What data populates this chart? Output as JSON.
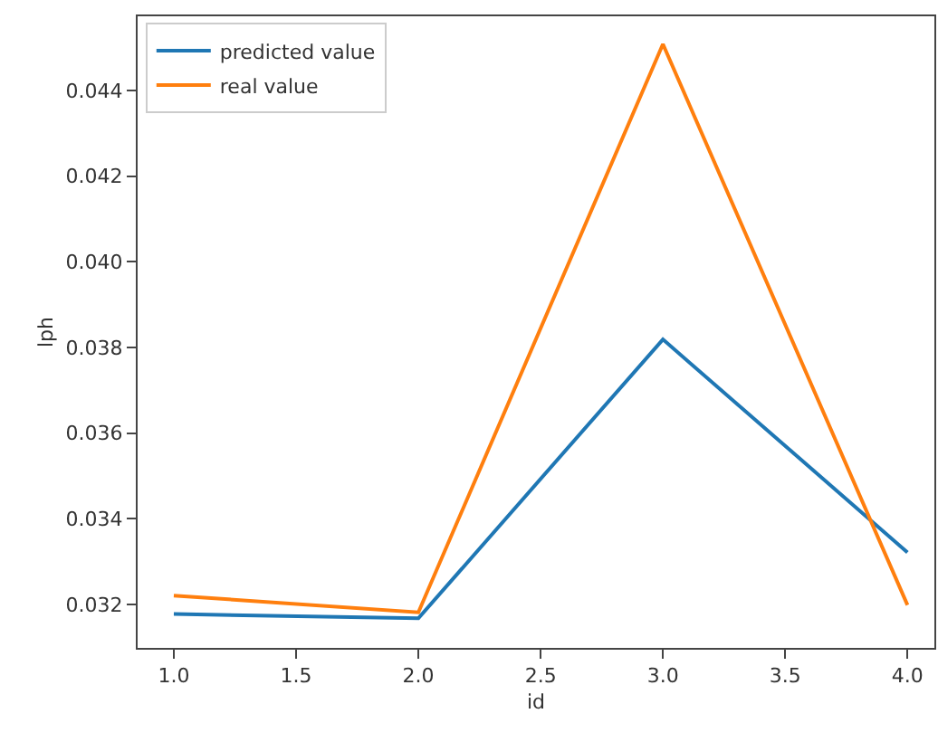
{
  "chart_data": {
    "type": "line",
    "xlabel": "id",
    "ylabel": "lph",
    "x": [
      1.0,
      2.0,
      3.0,
      4.0
    ],
    "series": [
      {
        "name": "predicted value",
        "color": "#1f77b4",
        "values": [
          0.03178,
          0.03168,
          0.03819,
          0.03322
        ]
      },
      {
        "name": "real value",
        "color": "#ff7f0e",
        "values": [
          0.03221,
          0.03182,
          0.04508,
          0.03199
        ]
      }
    ],
    "xlim": [
      0.852,
      4.11
    ],
    "xticks": [
      {
        "value": 1.0,
        "label": "1.0"
      },
      {
        "value": 1.5,
        "label": "1.5"
      },
      {
        "value": 2.0,
        "label": "2.0"
      },
      {
        "value": 2.5,
        "label": "2.5"
      },
      {
        "value": 3.0,
        "label": "3.0"
      },
      {
        "value": 3.5,
        "label": "3.5"
      },
      {
        "value": 4.0,
        "label": "4.0"
      }
    ],
    "ylim": [
      0.03099,
      0.04573
    ],
    "yticks": [
      {
        "value": 0.032,
        "label": "0.032"
      },
      {
        "value": 0.034,
        "label": "0.034"
      },
      {
        "value": 0.036,
        "label": "0.036"
      },
      {
        "value": 0.038,
        "label": "0.038"
      },
      {
        "value": 0.04,
        "label": "0.040"
      },
      {
        "value": 0.042,
        "label": "0.042"
      },
      {
        "value": 0.044,
        "label": "0.044"
      }
    ],
    "legend": "top left"
  }
}
